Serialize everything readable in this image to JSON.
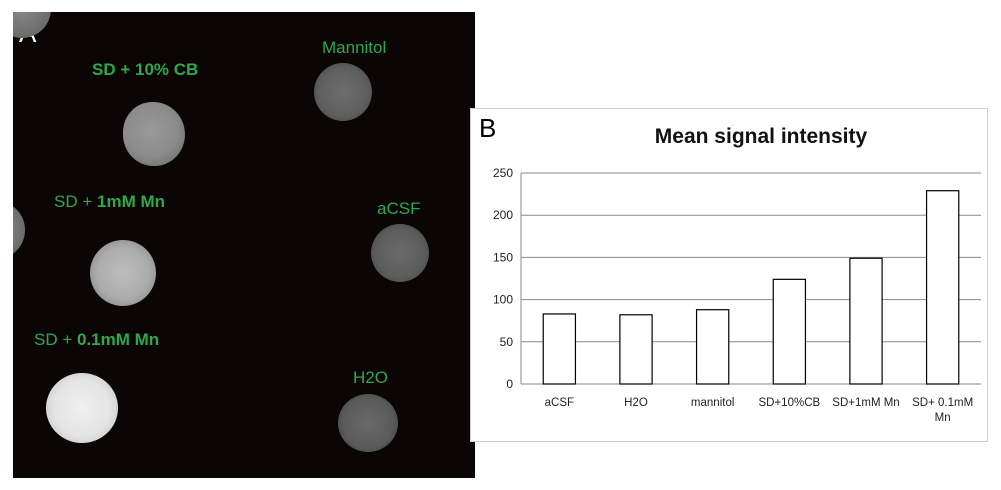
{
  "panel_a": {
    "letter": "A",
    "labels": {
      "cb": {
        "prefix": "SD + 10% CB",
        "bold": ""
      },
      "mn1": {
        "prefix": "SD + ",
        "bold": "1mM Mn"
      },
      "mn01": {
        "prefix": "SD + ",
        "bold": "0.1mM Mn"
      },
      "mannitol": {
        "prefix": "Mannitol",
        "bold": ""
      },
      "acsf": {
        "prefix": "aCSF",
        "bold": ""
      },
      "h2o": {
        "prefix": "H2O",
        "bold": ""
      }
    }
  },
  "chart_data": {
    "type": "bar",
    "panel_letter": "B",
    "title": "Mean signal intensity",
    "categories": [
      "aCSF",
      "H2O",
      "mannitol",
      "SD+10%CB",
      "SD+1mM Mn",
      "SD+ 0.1mM Mn"
    ],
    "values": [
      83,
      82,
      88,
      124,
      149,
      229
    ],
    "ylim": [
      0,
      250
    ],
    "yticks": [
      0,
      50,
      100,
      150,
      200,
      250
    ],
    "grid": true,
    "colors": {
      "bar_fill": "#ffffff",
      "bar_stroke": "#000000",
      "grid": "#8a8a8a"
    }
  }
}
